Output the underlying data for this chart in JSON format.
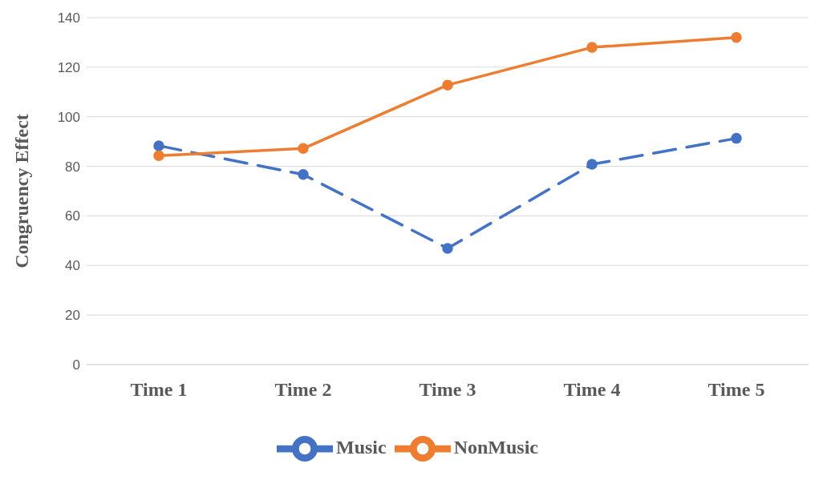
{
  "chart_data": {
    "type": "line",
    "ylabel": "Congruency Effect",
    "categories": [
      "Time 1",
      "Time 2",
      "Time 3",
      "Time 4",
      "Time 5"
    ],
    "series": [
      {
        "name": "Music",
        "color": "#4472c4",
        "line_style": "dashed",
        "values": [
          88.3,
          76.7,
          46.9,
          80.8,
          91.3
        ]
      },
      {
        "name": "NonMusic",
        "color": "#ed7d31",
        "line_style": "solid",
        "values": [
          84.3,
          87.2,
          112.8,
          128,
          132
        ]
      }
    ],
    "ylim": [
      0,
      140
    ],
    "yticks": [
      0,
      20,
      40,
      60,
      80,
      100,
      120,
      140
    ],
    "grid": "y",
    "legend": "bottom",
    "marker": "circle"
  }
}
